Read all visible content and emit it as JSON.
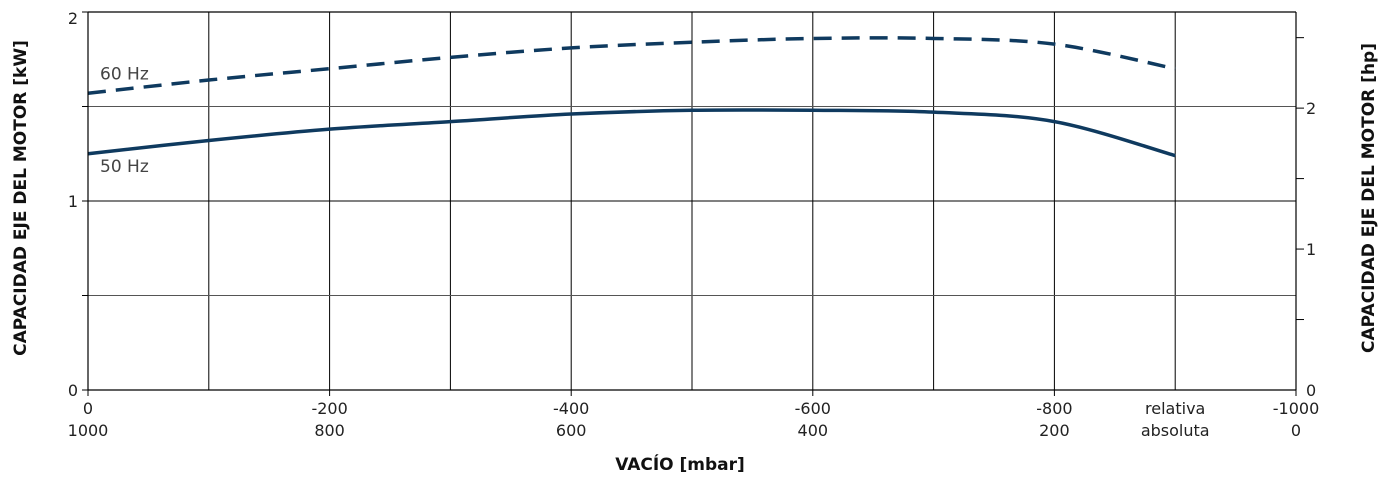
{
  "chart_data": {
    "type": "line",
    "title": "",
    "xlabel": "VACÍO  [mbar]",
    "ylabel_left": "CAPACIDAD EJE DEL MOTOR  [kW]",
    "ylabel_right": "CAPACIDAD EJE DEL MOTOR  [hp]",
    "x_range": [
      0,
      -1000
    ],
    "y_left_range": [
      0,
      2
    ],
    "y_right_range_hp": [
      0,
      2.682
    ],
    "grid": true,
    "x_ticks_relative": [
      {
        "value": 0,
        "label": "0"
      },
      {
        "value": -200,
        "label": "-200"
      },
      {
        "value": -400,
        "label": "-400"
      },
      {
        "value": -600,
        "label": "-600"
      },
      {
        "value": -800,
        "label": "-800"
      },
      {
        "value": -1000,
        "label": "-1000"
      }
    ],
    "x_ticks_absolute": [
      {
        "value": 0,
        "label": "1000"
      },
      {
        "value": -200,
        "label": "800"
      },
      {
        "value": -400,
        "label": "600"
      },
      {
        "value": -600,
        "label": "400"
      },
      {
        "value": -800,
        "label": "200"
      },
      {
        "value": -1000,
        "label": "0"
      }
    ],
    "scale_legend": {
      "relative": "relativa",
      "absolute": "absoluta",
      "at": -900
    },
    "y_left_ticks": [
      {
        "value": 0,
        "label": "0"
      },
      {
        "value": 1,
        "label": "1"
      },
      {
        "value": 2,
        "label": "2"
      }
    ],
    "y_right_ticks": [
      {
        "value": 0,
        "label": "0"
      },
      {
        "value": 1,
        "label": "1"
      },
      {
        "value": 2,
        "label": "2"
      }
    ],
    "series": [
      {
        "name": "60 Hz",
        "style": "dashed",
        "color": "#0f3a5f",
        "x": [
          0,
          -100,
          -200,
          -300,
          -400,
          -500,
          -600,
          -700,
          -800,
          -900
        ],
        "y": [
          1.57,
          1.64,
          1.7,
          1.76,
          1.81,
          1.84,
          1.86,
          1.86,
          1.83,
          1.7
        ]
      },
      {
        "name": "50 Hz",
        "style": "solid",
        "color": "#0f3a5f",
        "x": [
          0,
          -100,
          -200,
          -300,
          -400,
          -500,
          -600,
          -700,
          -800,
          -900
        ],
        "y": [
          1.25,
          1.32,
          1.38,
          1.42,
          1.46,
          1.48,
          1.48,
          1.47,
          1.42,
          1.24
        ]
      }
    ]
  }
}
